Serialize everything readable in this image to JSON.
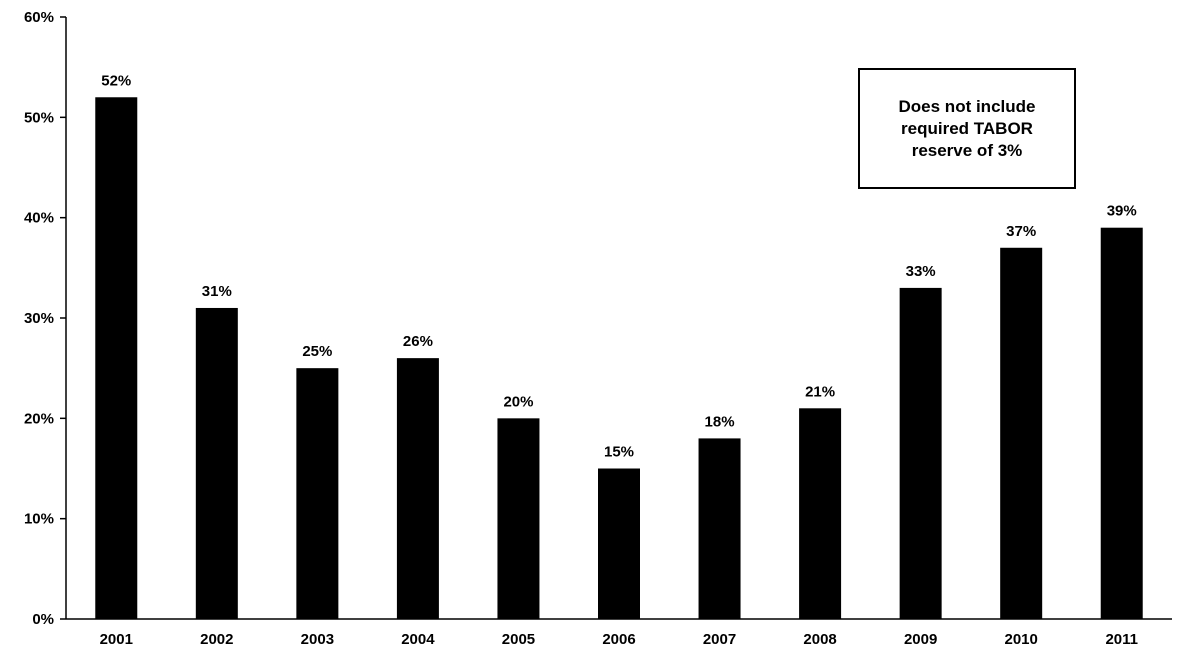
{
  "chart_data": {
    "type": "bar",
    "title": "",
    "xlabel": "",
    "ylabel": "",
    "categories": [
      "2001",
      "2002",
      "2003",
      "2004",
      "2005",
      "2006",
      "2007",
      "2008",
      "2009",
      "2010",
      "2011"
    ],
    "values": [
      52,
      31,
      25,
      26,
      20,
      15,
      18,
      21,
      33,
      37,
      39
    ],
    "data_labels": [
      "52%",
      "31%",
      "25%",
      "26%",
      "20%",
      "15%",
      "18%",
      "21%",
      "33%",
      "37%",
      "39%"
    ],
    "ylim": [
      0,
      60
    ],
    "y_ticks": [
      0,
      10,
      20,
      30,
      40,
      50,
      60
    ],
    "y_tick_labels": [
      "0%",
      "10%",
      "20%",
      "30%",
      "40%",
      "50%",
      "60%"
    ],
    "grid": false,
    "bar_color": "#000000",
    "annotation": "Does not include required TABOR reserve of 3%"
  }
}
